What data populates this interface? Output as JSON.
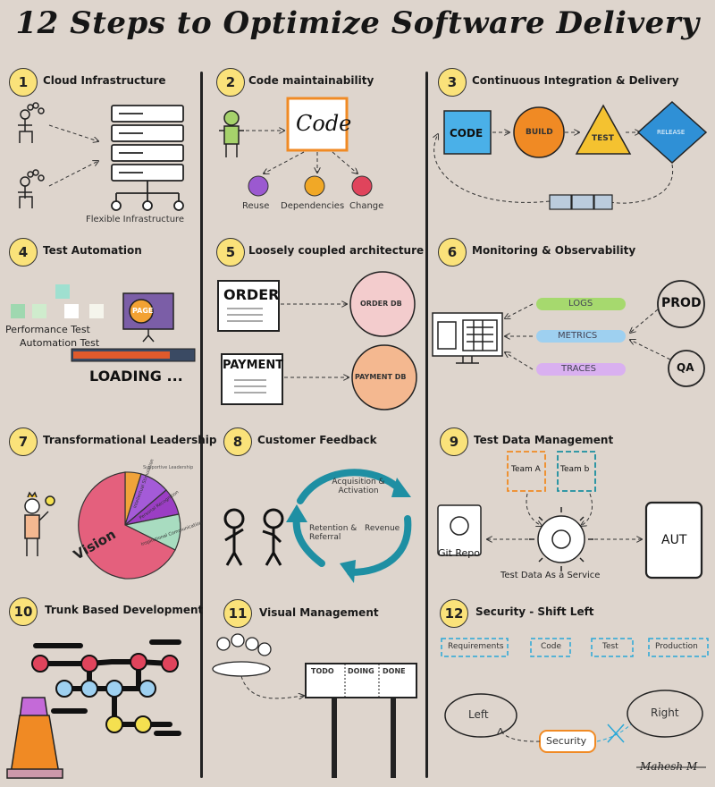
{
  "title": "12 Steps to Optimize Software Delivery",
  "signature": "Mahesh M",
  "sections": [
    {
      "num": "1",
      "title": "Cloud Infrastructure",
      "labels": {
        "caption": "Flexible Infrastructure"
      }
    },
    {
      "num": "2",
      "title": "Code maintainability",
      "labels": {
        "code": "Code",
        "reuse": "Reuse",
        "dependencies": "Dependencies",
        "change": "Change"
      }
    },
    {
      "num": "3",
      "title": "Continuous Integration & Delivery",
      "labels": {
        "code": "CODE",
        "build": "BUILD",
        "test": "TEST",
        "release": "RELEASE"
      }
    },
    {
      "num": "4",
      "title": "Test Automation",
      "labels": {
        "perf": "Performance Test",
        "auto": "Automation Test",
        "loading": "LOADING ...",
        "page": "PAGE"
      }
    },
    {
      "num": "5",
      "title": "Loosely coupled architecture",
      "labels": {
        "order": "ORDER",
        "order_db": "ORDER DB",
        "payment": "PAYMENT",
        "payment_db": "PAYMENT DB"
      }
    },
    {
      "num": "6",
      "title": "Monitoring & Observability",
      "labels": {
        "logs": "LOGS",
        "metrics": "METRICS",
        "traces": "TRACES",
        "prod": "PROD",
        "qa": "QA"
      }
    },
    {
      "num": "7",
      "title": "Transformational Leadership",
      "labels": {
        "vision": "Vision",
        "intellectual": "Intellectual Stimulation",
        "personal": "Personal Recognition",
        "inspirational": "Inspirational Communication",
        "supportive": "Supportive Leadership"
      }
    },
    {
      "num": "8",
      "title": "Customer Feedback",
      "labels": {
        "acquisition": "Acquisition & Activation",
        "revenue": "Revenue",
        "retention": "Retention & Referral"
      }
    },
    {
      "num": "9",
      "title": "Test Data Management",
      "labels": {
        "team_a": "Team A",
        "team_b": "Team b",
        "git": "Git Repo",
        "aut": "AUT",
        "service": "Test Data As a Service"
      }
    },
    {
      "num": "10",
      "title": "Trunk Based Development",
      "labels": {}
    },
    {
      "num": "11",
      "title": "Visual Management",
      "labels": {
        "todo": "TODO",
        "doing": "DOING",
        "done": "DONE"
      }
    },
    {
      "num": "12",
      "title": "Security - Shift Left",
      "labels": {
        "requirements": "Requirements",
        "code": "Code",
        "test": "Test",
        "production": "Production",
        "left": "Left",
        "right": "Right",
        "security": "Security"
      }
    }
  ],
  "colors": {
    "background": "#ded5cd",
    "badge": "#fae27a",
    "accent_orange": "#f08a24",
    "accent_blue": "#29a8d8",
    "teal": "#1b8fa0",
    "pink": "#e05a7a"
  }
}
